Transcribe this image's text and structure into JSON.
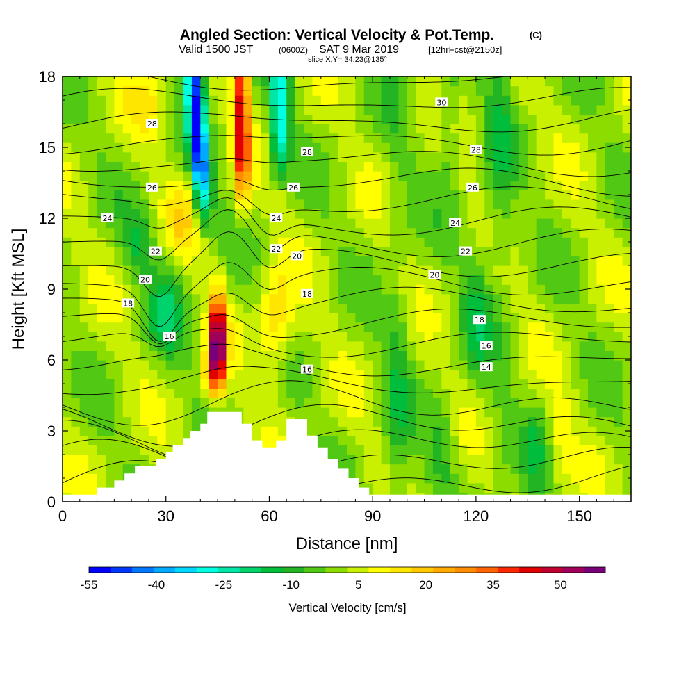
{
  "figure": {
    "title_main": "Angled Section: Vertical Velocity & Pot.Temp.",
    "title_mark": "(C)",
    "sub_a": "Valid 1500 JST",
    "sub_b": "(0600Z)",
    "sub_c": "SAT 9 Mar 2019",
    "sub_d": "[12hrFcst@2150z]",
    "slice": "slice X,Y= 34,23@135°"
  },
  "chart_data": {
    "type": "heatmap",
    "xlabel": "Distance [nm]",
    "ylabel": "Height [Kft MSL]",
    "xlim": [
      0,
      165
    ],
    "ylim": [
      0,
      18
    ],
    "x_ticks": [
      0,
      30,
      60,
      90,
      120,
      150
    ],
    "y_ticks": [
      0,
      3,
      6,
      9,
      12,
      15,
      18
    ],
    "colorbar": {
      "label": "Vertical Velocity [cm/s]",
      "tick_values": [
        -55,
        -40,
        -25,
        -10,
        5,
        20,
        35,
        50
      ],
      "levels": [
        -55,
        -50,
        -45,
        -40,
        -35,
        -30,
        -25,
        -20,
        -15,
        -10,
        -5,
        0,
        5,
        10,
        15,
        20,
        25,
        30,
        35,
        40,
        45,
        50,
        55,
        60
      ],
      "colors": [
        "#0000ff",
        "#0037ff",
        "#0077ff",
        "#00aaff",
        "#00d7ff",
        "#00ffe0",
        "#00e6a6",
        "#00d26e",
        "#00be3c",
        "#22b422",
        "#50c814",
        "#8cdc00",
        "#c8f000",
        "#ffff00",
        "#ffe600",
        "#ffc800",
        "#ffaa00",
        "#ff8c00",
        "#ff6400",
        "#ff2800",
        "#e10000",
        "#c00030",
        "#a0005a",
        "#780078"
      ]
    },
    "terrain_kft": [
      [
        0,
        0.3
      ],
      [
        10,
        0.3
      ],
      [
        10,
        0.6
      ],
      [
        15,
        0.6
      ],
      [
        15,
        0.9
      ],
      [
        18,
        0.9
      ],
      [
        18,
        1.2
      ],
      [
        21,
        1.2
      ],
      [
        21,
        1.5
      ],
      [
        27,
        1.5
      ],
      [
        27,
        1.8
      ],
      [
        30,
        1.8
      ],
      [
        30,
        2.1
      ],
      [
        32,
        2.1
      ],
      [
        32,
        2.4
      ],
      [
        35,
        2.4
      ],
      [
        35,
        2.7
      ],
      [
        37,
        2.7
      ],
      [
        37,
        3.0
      ],
      [
        40,
        3.0
      ],
      [
        40,
        3.3
      ],
      [
        42,
        3.3
      ],
      [
        42,
        3.8
      ],
      [
        52,
        3.8
      ],
      [
        52,
        3.3
      ],
      [
        55,
        3.3
      ],
      [
        55,
        2.6
      ],
      [
        58,
        2.6
      ],
      [
        58,
        2.3
      ],
      [
        62,
        2.3
      ],
      [
        62,
        2.6
      ],
      [
        65,
        2.6
      ],
      [
        65,
        3.5
      ],
      [
        71,
        3.5
      ],
      [
        71,
        2.8
      ],
      [
        74,
        2.8
      ],
      [
        74,
        2.3
      ],
      [
        77,
        2.3
      ],
      [
        77,
        1.8
      ],
      [
        80,
        1.8
      ],
      [
        80,
        1.4
      ],
      [
        83,
        1.4
      ],
      [
        83,
        1.0
      ],
      [
        86,
        1.0
      ],
      [
        86,
        0.6
      ],
      [
        89,
        0.6
      ],
      [
        89,
        0.3
      ],
      [
        165,
        0.3
      ]
    ],
    "isentrope_labels": [
      {
        "value": "28",
        "x": 26,
        "y": 16.0
      },
      {
        "value": "26",
        "x": 26,
        "y": 13.3
      },
      {
        "value": "24",
        "x": 13,
        "y": 12.0
      },
      {
        "value": "22",
        "x": 27,
        "y": 10.6
      },
      {
        "value": "20",
        "x": 24,
        "y": 9.4
      },
      {
        "value": "18",
        "x": 19,
        "y": 8.4
      },
      {
        "value": "16",
        "x": 31,
        "y": 7.0
      },
      {
        "value": "28",
        "x": 71,
        "y": 14.8
      },
      {
        "value": "26",
        "x": 67,
        "y": 13.3
      },
      {
        "value": "24",
        "x": 62,
        "y": 12.0
      },
      {
        "value": "22",
        "x": 62,
        "y": 10.7
      },
      {
        "value": "20",
        "x": 68,
        "y": 10.4
      },
      {
        "value": "18",
        "x": 71,
        "y": 8.8
      },
      {
        "value": "16",
        "x": 71,
        "y": 5.6
      },
      {
        "value": "30",
        "x": 110,
        "y": 16.9
      },
      {
        "value": "28",
        "x": 120,
        "y": 14.9
      },
      {
        "value": "26",
        "x": 119,
        "y": 13.3
      },
      {
        "value": "24",
        "x": 114,
        "y": 11.8
      },
      {
        "value": "22",
        "x": 117,
        "y": 10.6
      },
      {
        "value": "20",
        "x": 108,
        "y": 9.6
      },
      {
        "value": "18",
        "x": 121,
        "y": 7.7
      },
      {
        "value": "16",
        "x": 123,
        "y": 6.6
      },
      {
        "value": "14",
        "x": 123,
        "y": 5.7
      }
    ]
  }
}
